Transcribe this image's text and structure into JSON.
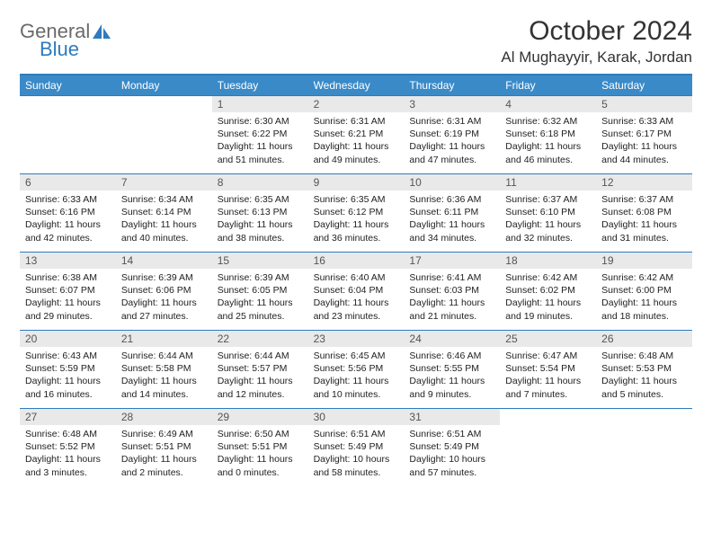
{
  "logo": {
    "text1": "General",
    "text2": "Blue",
    "sail_color": "#2e7bbf"
  },
  "title": "October 2024",
  "location": "Al Mughayyir, Karak, Jordan",
  "header_bg": "#3a8ac8",
  "border_color": "#2e7bbf",
  "daynum_bg": "#e9e9e9",
  "weekdays": [
    "Sunday",
    "Monday",
    "Tuesday",
    "Wednesday",
    "Thursday",
    "Friday",
    "Saturday"
  ],
  "weeks": [
    [
      null,
      null,
      {
        "n": "1",
        "sr": "6:30 AM",
        "ss": "6:22 PM",
        "dl": "11 hours and 51 minutes."
      },
      {
        "n": "2",
        "sr": "6:31 AM",
        "ss": "6:21 PM",
        "dl": "11 hours and 49 minutes."
      },
      {
        "n": "3",
        "sr": "6:31 AM",
        "ss": "6:19 PM",
        "dl": "11 hours and 47 minutes."
      },
      {
        "n": "4",
        "sr": "6:32 AM",
        "ss": "6:18 PM",
        "dl": "11 hours and 46 minutes."
      },
      {
        "n": "5",
        "sr": "6:33 AM",
        "ss": "6:17 PM",
        "dl": "11 hours and 44 minutes."
      }
    ],
    [
      {
        "n": "6",
        "sr": "6:33 AM",
        "ss": "6:16 PM",
        "dl": "11 hours and 42 minutes."
      },
      {
        "n": "7",
        "sr": "6:34 AM",
        "ss": "6:14 PM",
        "dl": "11 hours and 40 minutes."
      },
      {
        "n": "8",
        "sr": "6:35 AM",
        "ss": "6:13 PM",
        "dl": "11 hours and 38 minutes."
      },
      {
        "n": "9",
        "sr": "6:35 AM",
        "ss": "6:12 PM",
        "dl": "11 hours and 36 minutes."
      },
      {
        "n": "10",
        "sr": "6:36 AM",
        "ss": "6:11 PM",
        "dl": "11 hours and 34 minutes."
      },
      {
        "n": "11",
        "sr": "6:37 AM",
        "ss": "6:10 PM",
        "dl": "11 hours and 32 minutes."
      },
      {
        "n": "12",
        "sr": "6:37 AM",
        "ss": "6:08 PM",
        "dl": "11 hours and 31 minutes."
      }
    ],
    [
      {
        "n": "13",
        "sr": "6:38 AM",
        "ss": "6:07 PM",
        "dl": "11 hours and 29 minutes."
      },
      {
        "n": "14",
        "sr": "6:39 AM",
        "ss": "6:06 PM",
        "dl": "11 hours and 27 minutes."
      },
      {
        "n": "15",
        "sr": "6:39 AM",
        "ss": "6:05 PM",
        "dl": "11 hours and 25 minutes."
      },
      {
        "n": "16",
        "sr": "6:40 AM",
        "ss": "6:04 PM",
        "dl": "11 hours and 23 minutes."
      },
      {
        "n": "17",
        "sr": "6:41 AM",
        "ss": "6:03 PM",
        "dl": "11 hours and 21 minutes."
      },
      {
        "n": "18",
        "sr": "6:42 AM",
        "ss": "6:02 PM",
        "dl": "11 hours and 19 minutes."
      },
      {
        "n": "19",
        "sr": "6:42 AM",
        "ss": "6:00 PM",
        "dl": "11 hours and 18 minutes."
      }
    ],
    [
      {
        "n": "20",
        "sr": "6:43 AM",
        "ss": "5:59 PM",
        "dl": "11 hours and 16 minutes."
      },
      {
        "n": "21",
        "sr": "6:44 AM",
        "ss": "5:58 PM",
        "dl": "11 hours and 14 minutes."
      },
      {
        "n": "22",
        "sr": "6:44 AM",
        "ss": "5:57 PM",
        "dl": "11 hours and 12 minutes."
      },
      {
        "n": "23",
        "sr": "6:45 AM",
        "ss": "5:56 PM",
        "dl": "11 hours and 10 minutes."
      },
      {
        "n": "24",
        "sr": "6:46 AM",
        "ss": "5:55 PM",
        "dl": "11 hours and 9 minutes."
      },
      {
        "n": "25",
        "sr": "6:47 AM",
        "ss": "5:54 PM",
        "dl": "11 hours and 7 minutes."
      },
      {
        "n": "26",
        "sr": "6:48 AM",
        "ss": "5:53 PM",
        "dl": "11 hours and 5 minutes."
      }
    ],
    [
      {
        "n": "27",
        "sr": "6:48 AM",
        "ss": "5:52 PM",
        "dl": "11 hours and 3 minutes."
      },
      {
        "n": "28",
        "sr": "6:49 AM",
        "ss": "5:51 PM",
        "dl": "11 hours and 2 minutes."
      },
      {
        "n": "29",
        "sr": "6:50 AM",
        "ss": "5:51 PM",
        "dl": "11 hours and 0 minutes."
      },
      {
        "n": "30",
        "sr": "6:51 AM",
        "ss": "5:49 PM",
        "dl": "10 hours and 58 minutes."
      },
      {
        "n": "31",
        "sr": "6:51 AM",
        "ss": "5:49 PM",
        "dl": "10 hours and 57 minutes."
      },
      null,
      null
    ]
  ],
  "labels": {
    "sunrise": "Sunrise:",
    "sunset": "Sunset:",
    "daylight": "Daylight:"
  }
}
